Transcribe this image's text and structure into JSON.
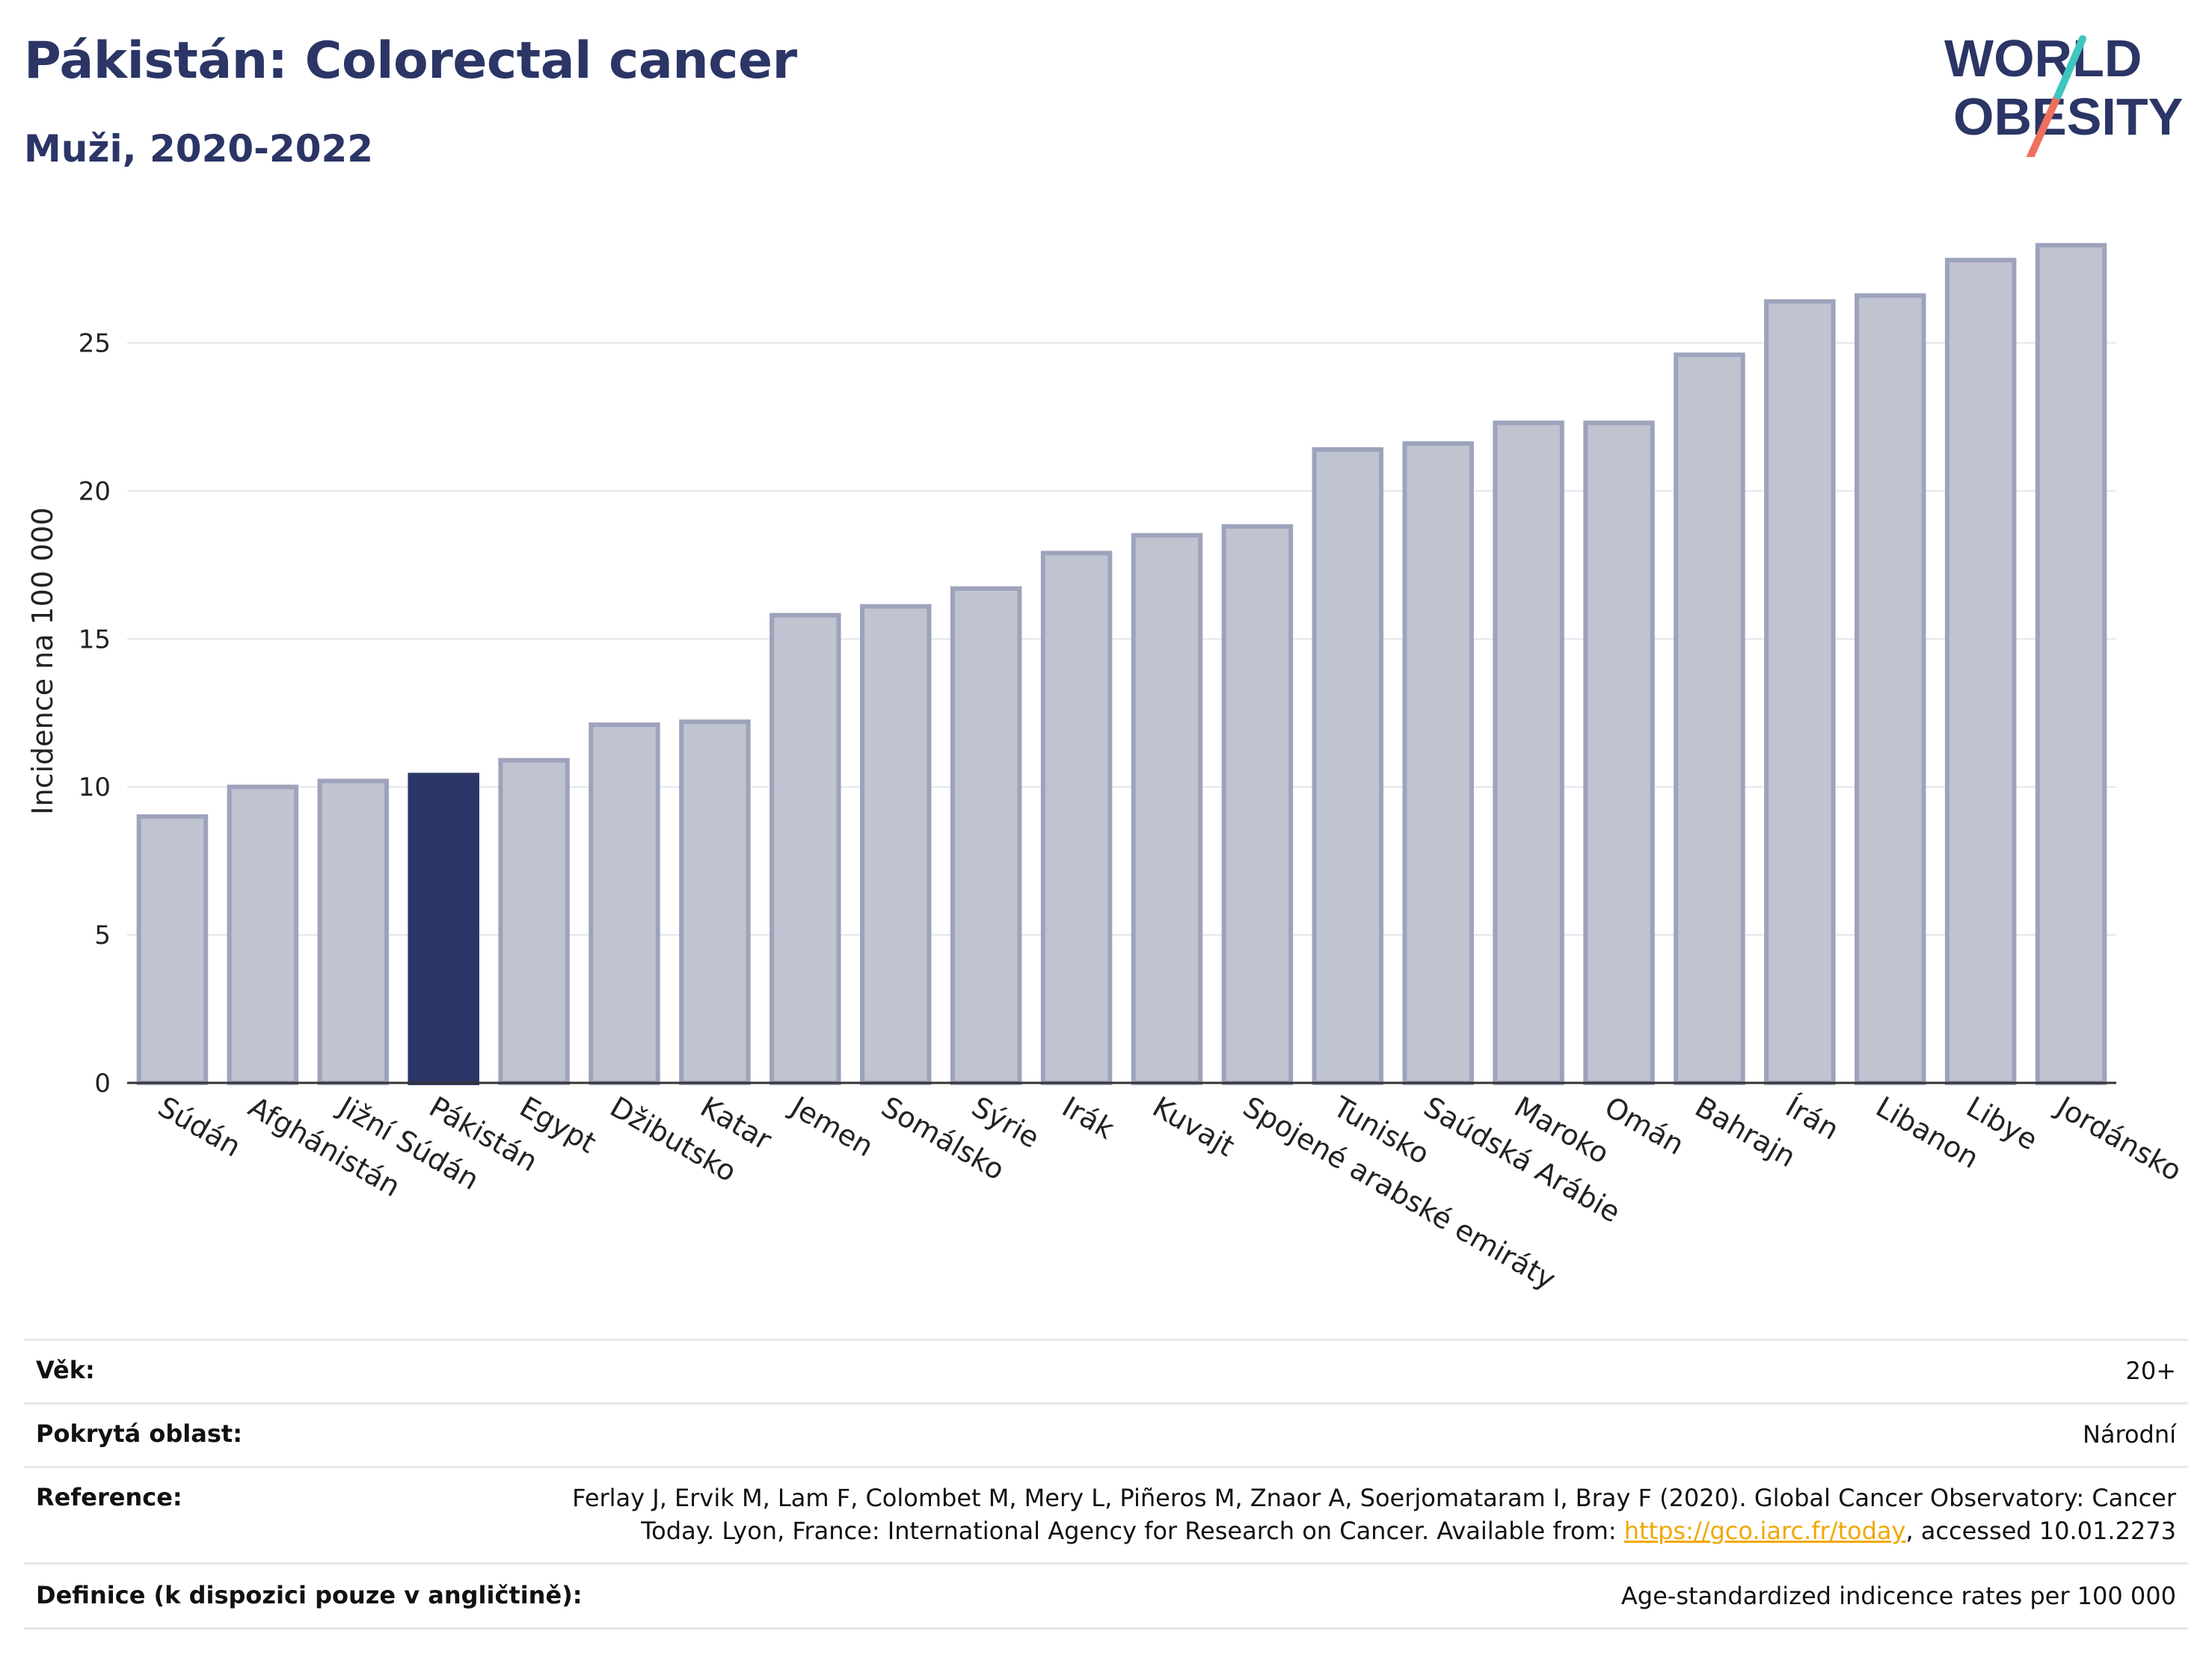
{
  "header": {
    "title": "Pákistán: Colorectal cancer",
    "subtitle": "Muži, 2020-2022",
    "logo_line1": "WORLD",
    "logo_line2": "OBESITY"
  },
  "colors": {
    "title": "#2b3566",
    "bar": "#c0c3d0",
    "bar_border": "#9ea3bc",
    "highlight": "#2b3566",
    "logo_teal": "#3ec6c0",
    "logo_coral": "#ef6f5e",
    "link": "#f0a800"
  },
  "chart_data": {
    "type": "bar",
    "title": "Pákistán: Colorectal cancer",
    "ylabel": "Incidence na 100 000",
    "xlabel": "",
    "ylim": [
      0,
      28.5
    ],
    "yticks": [
      "0",
      "5",
      "10",
      "15",
      "20",
      "25"
    ],
    "grid": true,
    "highlight_category": "Pákistán",
    "categories": [
      "Súdán",
      "Afghánistán",
      "Jižní Súdán",
      "Pákistán",
      "Egypt",
      "Džibutsko",
      "Katar",
      "Jemen",
      "Somálsko",
      "Sýrie",
      "Irák",
      "Kuvajt",
      "Spojené arabské emiráty",
      "Tunisko",
      "Saúdská Arábie",
      "Maroko",
      "Omán",
      "Bahrajn",
      "Írán",
      "Libanon",
      "Libye",
      "Jordánsko"
    ],
    "values": [
      9.0,
      10.0,
      10.2,
      10.4,
      10.9,
      12.1,
      12.2,
      15.8,
      16.1,
      16.7,
      17.9,
      18.5,
      18.8,
      21.4,
      21.6,
      22.3,
      22.3,
      24.6,
      26.4,
      26.6,
      27.8,
      28.3
    ]
  },
  "info": {
    "age_label": "Věk:",
    "age_value": "20+",
    "area_label": "Pokrytá oblast:",
    "area_value": "Národní",
    "reference_label": "Reference:",
    "reference_text_1": "Ferlay J, Ervik M, Lam F, Colombet M, Mery L, Piñeros M, Znaor A, Soerjomataram I, Bray F (2020). Global Cancer Observatory: Cancer Today. Lyon, France: International Agency for Research on Cancer. Available from: ",
    "reference_link": "https://gco.iarc.fr/today",
    "reference_text_2": ", accessed 10.01.2273",
    "definition_label": "Definice (k dispozici pouze v angličtině):",
    "definition_value": "Age-standardized indicence rates per 100 000"
  }
}
